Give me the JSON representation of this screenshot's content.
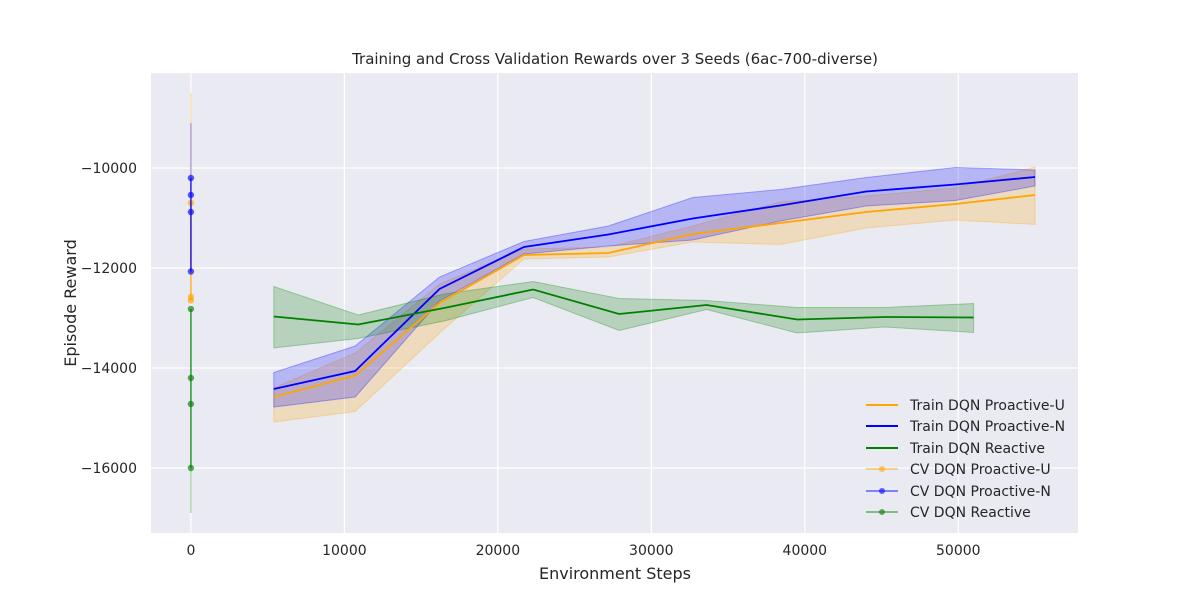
{
  "chart_data": {
    "type": "line",
    "title": "Training and Cross Validation Rewards over 3 Seeds (6ac-700-diverse)",
    "xlabel": "Environment Steps",
    "ylabel": "Episode Reward",
    "xlim": [
      -2600,
      57800
    ],
    "ylim": [
      -17300,
      -8100
    ],
    "xticks": [
      0,
      10000,
      20000,
      30000,
      40000,
      50000
    ],
    "yticks": [
      -16000,
      -14000,
      -12000,
      -10000
    ],
    "grid": true,
    "legend_position": "lower-right",
    "series": [
      {
        "name": "Train DQN Proactive-U",
        "color": "#ffa500",
        "x": [
          5400,
          10700,
          16200,
          21700,
          27200,
          32700,
          38400,
          44000,
          49800,
          55000
        ],
        "mean": [
          -14580,
          -14150,
          -12700,
          -11740,
          -11700,
          -11320,
          -11100,
          -10880,
          -10720,
          -10540
        ],
        "lower": [
          -15080,
          -14870,
          -13300,
          -11820,
          -11780,
          -11480,
          -11530,
          -11200,
          -11040,
          -11130
        ],
        "upper": [
          -14400,
          -13700,
          -12320,
          -11620,
          -11580,
          -11160,
          -10680,
          -10560,
          -10400,
          -9980
        ]
      },
      {
        "name": "Train DQN Proactive-N",
        "color": "#0000ff",
        "x": [
          5400,
          10700,
          16200,
          21700,
          27200,
          32700,
          38400,
          44000,
          49800,
          55000
        ],
        "mean": [
          -14420,
          -14060,
          -12420,
          -11580,
          -11330,
          -11010,
          -10750,
          -10470,
          -10330,
          -10180
        ],
        "lower": [
          -14780,
          -14580,
          -12660,
          -11720,
          -11560,
          -11440,
          -11060,
          -10760,
          -10650,
          -10360
        ],
        "upper": [
          -14090,
          -13560,
          -12180,
          -11470,
          -11160,
          -10590,
          -10430,
          -10190,
          -9990,
          -10040
        ]
      },
      {
        "name": "Train DQN Reactive",
        "color": "#008000",
        "x": [
          5400,
          10900,
          16500,
          22300,
          27900,
          33600,
          39500,
          45200,
          51000
        ],
        "mean": [
          -12970,
          -13130,
          -12800,
          -12430,
          -12920,
          -12740,
          -13030,
          -12980,
          -12990
        ],
        "lower": [
          -13600,
          -13410,
          -13060,
          -12590,
          -13250,
          -12830,
          -13300,
          -13180,
          -13290
        ],
        "upper": [
          -12370,
          -12940,
          -12520,
          -12270,
          -12610,
          -12650,
          -12790,
          -12790,
          -12710
        ]
      }
    ],
    "cv_series": [
      {
        "name": "CV DQN Proactive-U",
        "color": "#ffa500",
        "x": 0,
        "points": [
          -10700,
          -12580,
          -12650
        ],
        "error_range": [
          -12700,
          -8500
        ]
      },
      {
        "name": "CV DQN Proactive-N",
        "color": "#0000ff",
        "x": 0,
        "points": [
          -10200,
          -10540,
          -10880,
          -12070
        ],
        "error_range": [
          -12070,
          -9100
        ]
      },
      {
        "name": "CV DQN Reactive",
        "color": "#008000",
        "x": 0,
        "points": [
          -12820,
          -14200,
          -14720,
          -16000
        ],
        "error_range": [
          -16900,
          -12820
        ]
      }
    ]
  }
}
